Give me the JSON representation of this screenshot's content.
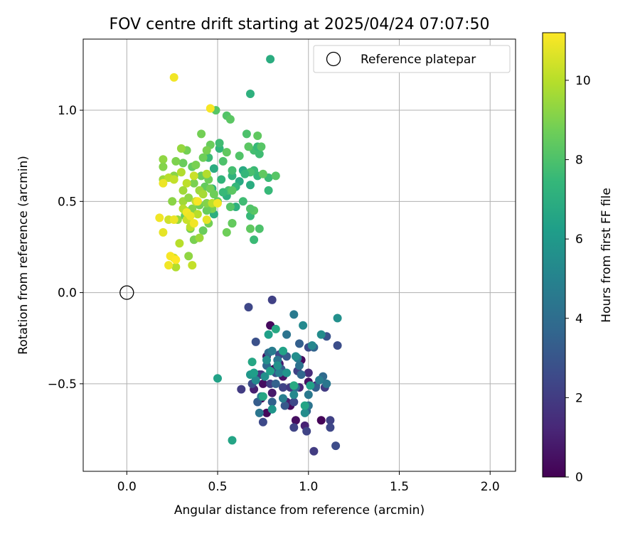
{
  "chart_data": {
    "type": "scatter",
    "title": "FOV centre drift starting at 2025/04/24 07:07:50",
    "xlabel": "Angular distance from reference (arcmin)",
    "ylabel": "Rotation from reference (arcmin)",
    "xlim": [
      -0.24,
      2.14
    ],
    "ylim": [
      -0.98,
      1.39
    ],
    "xticks": [
      0.0,
      0.5,
      1.0,
      1.5,
      2.0
    ],
    "xtick_labels": [
      "0.0",
      "0.5",
      "1.0",
      "1.5",
      "2.0"
    ],
    "yticks": [
      -0.5,
      0.0,
      0.5,
      1.0
    ],
    "ytick_labels": [
      "−0.5",
      "0.0",
      "0.5",
      "1.0"
    ],
    "grid": true,
    "legend": {
      "position": "top-right",
      "entries": [
        "Reference platepar"
      ]
    },
    "reference_point": {
      "x": 0.0,
      "y": 0.0,
      "label": "Reference platepar"
    },
    "colorbar": {
      "label": "Hours from first FF file",
      "colormap": "viridis",
      "range": [
        0,
        11.2
      ],
      "ticks": [
        0,
        2,
        4,
        6,
        8,
        10
      ],
      "tick_labels": [
        "0",
        "2",
        "4",
        "6",
        "8",
        "10"
      ]
    },
    "points": [
      [
        0.79,
        -0.18,
        0.3
      ],
      [
        0.77,
        -0.35,
        0.5
      ],
      [
        0.75,
        -0.5,
        0.4
      ],
      [
        0.81,
        -0.42,
        0.2
      ],
      [
        0.86,
        -0.46,
        0.6
      ],
      [
        0.74,
        -0.58,
        0.1
      ],
      [
        0.96,
        -0.37,
        0.3
      ],
      [
        1.0,
        -0.49,
        0.5
      ],
      [
        0.8,
        -0.55,
        0.8
      ],
      [
        0.77,
        -0.66,
        0.2
      ],
      [
        0.93,
        -0.7,
        0.4
      ],
      [
        1.07,
        -0.7,
        0.1
      ],
      [
        0.9,
        -0.62,
        0.3
      ],
      [
        0.84,
        -0.39,
        0.9
      ],
      [
        0.73,
        -0.45,
        0.7
      ],
      [
        0.7,
        -0.53,
        1.0
      ],
      [
        0.95,
        -0.52,
        1.2
      ],
      [
        0.88,
        -0.6,
        1.0
      ],
      [
        1.0,
        -0.44,
        1.4
      ],
      [
        0.98,
        -0.73,
        1.1
      ],
      [
        0.8,
        -0.04,
        2.2
      ],
      [
        0.67,
        -0.08,
        2.4
      ],
      [
        0.63,
        -0.53,
        2.0
      ],
      [
        0.75,
        -0.71,
        2.5
      ],
      [
        0.92,
        -0.74,
        2.3
      ],
      [
        1.03,
        -0.87,
        2.0
      ],
      [
        1.15,
        -0.84,
        2.6
      ],
      [
        1.12,
        -0.7,
        2.2
      ],
      [
        1.12,
        -0.74,
        2.4
      ],
      [
        1.09,
        -0.52,
        2.0
      ],
      [
        1.16,
        -0.29,
        2.7
      ],
      [
        1.1,
        -0.24,
        2.9
      ],
      [
        1.0,
        -0.3,
        2.6
      ],
      [
        0.94,
        -0.43,
        2.2
      ],
      [
        0.86,
        -0.52,
        2.3
      ],
      [
        0.82,
        -0.44,
        2.8
      ],
      [
        0.92,
        -0.6,
        2.5
      ],
      [
        0.79,
        -0.5,
        2.1
      ],
      [
        0.84,
        -0.34,
        2.4
      ],
      [
        0.69,
        -0.5,
        2.6
      ],
      [
        0.71,
        -0.27,
        2.8
      ],
      [
        0.99,
        -0.76,
        2.3
      ],
      [
        0.74,
        -0.45,
        1.8
      ],
      [
        0.9,
        -0.52,
        1.9
      ],
      [
        1.04,
        -0.51,
        1.7
      ],
      [
        0.95,
        -0.28,
        3.4
      ],
      [
        1.03,
        -0.3,
        3.6
      ],
      [
        0.88,
        -0.35,
        3.2
      ],
      [
        0.82,
        -0.5,
        3.5
      ],
      [
        0.77,
        -0.4,
        3.8
      ],
      [
        0.72,
        -0.6,
        3.3
      ],
      [
        0.96,
        -0.45,
        3.7
      ],
      [
        1.08,
        -0.46,
        3.9
      ],
      [
        0.8,
        -0.6,
        3.5
      ],
      [
        1.04,
        -0.52,
        3.4
      ],
      [
        0.87,
        -0.62,
        3.1
      ],
      [
        0.99,
        -0.65,
        3.6
      ],
      [
        0.93,
        -0.52,
        3.8
      ],
      [
        0.85,
        -0.42,
        3.3
      ],
      [
        0.78,
        -0.33,
        3.9
      ],
      [
        0.88,
        -0.23,
        4.3
      ],
      [
        0.92,
        -0.12,
        4.6
      ],
      [
        0.8,
        -0.32,
        4.7
      ],
      [
        0.95,
        -0.4,
        4.2
      ],
      [
        1.0,
        -0.56,
        4.5
      ],
      [
        1.06,
        -0.48,
        4.8
      ],
      [
        1.1,
        -0.5,
        4.4
      ],
      [
        0.73,
        -0.66,
        4.4
      ],
      [
        0.84,
        -0.44,
        4.9
      ],
      [
        0.94,
        -0.36,
        4.6
      ],
      [
        0.74,
        -0.57,
        4.7
      ],
      [
        1.0,
        -0.62,
        4.3
      ],
      [
        0.86,
        -0.58,
        4.8
      ],
      [
        0.83,
        -0.37,
        4.5
      ],
      [
        0.97,
        -0.18,
        5.3
      ],
      [
        1.16,
        -0.14,
        5.6
      ],
      [
        1.07,
        -0.23,
        5.4
      ],
      [
        1.02,
        -0.29,
        5.2
      ],
      [
        0.93,
        -0.35,
        5.5
      ],
      [
        0.8,
        -0.64,
        5.8
      ],
      [
        0.83,
        -0.4,
        5.7
      ],
      [
        0.71,
        -0.48,
        5.3
      ],
      [
        0.76,
        -0.46,
        5.6
      ],
      [
        0.98,
        -0.66,
        5.4
      ],
      [
        0.92,
        -0.56,
        5.2
      ],
      [
        0.88,
        -0.44,
        5.8
      ],
      [
        0.77,
        -0.37,
        5.5
      ],
      [
        0.68,
        -0.45,
        5.9
      ],
      [
        0.5,
        -0.47,
        6.4
      ],
      [
        0.58,
        -0.81,
        6.5
      ],
      [
        0.78,
        -0.23,
        6.3
      ],
      [
        0.82,
        -0.2,
        6.7
      ],
      [
        0.86,
        -0.32,
        6.4
      ],
      [
        0.75,
        -0.57,
        6.6
      ],
      [
        0.7,
        -0.44,
        6.2
      ],
      [
        0.92,
        -0.51,
        6.8
      ],
      [
        1.01,
        -0.51,
        6.4
      ],
      [
        0.69,
        -0.38,
        6.6
      ],
      [
        0.98,
        -0.62,
        6.5
      ],
      [
        0.79,
        -0.43,
        6.3
      ],
      [
        0.79,
        1.28,
        6.9
      ],
      [
        0.68,
        1.09,
        7.1
      ],
      [
        0.64,
        0.67,
        6.8
      ],
      [
        0.68,
        0.59,
        6.9
      ],
      [
        0.55,
        0.53,
        7.0
      ],
      [
        0.58,
        0.64,
        7.2
      ],
      [
        0.6,
        0.47,
        7.1
      ],
      [
        0.62,
        0.61,
        6.8
      ],
      [
        0.52,
        0.62,
        7.3
      ],
      [
        0.48,
        0.43,
        7.0
      ],
      [
        0.47,
        0.57,
        7.2
      ],
      [
        0.51,
        0.79,
        7.3
      ],
      [
        0.48,
        0.68,
        6.9
      ],
      [
        0.78,
        0.63,
        7.6
      ],
      [
        0.78,
        0.56,
        7.5
      ],
      [
        0.72,
        0.64,
        7.4
      ],
      [
        0.7,
        0.78,
        7.8
      ],
      [
        0.73,
        0.76,
        7.7
      ],
      [
        0.72,
        0.8,
        7.5
      ],
      [
        0.7,
        0.67,
        7.6
      ],
      [
        0.68,
        0.66,
        7.9
      ],
      [
        0.65,
        0.65,
        7.4
      ],
      [
        0.64,
        0.5,
        7.7
      ],
      [
        0.68,
        0.42,
        7.5
      ],
      [
        0.7,
        0.29,
        7.6
      ],
      [
        0.58,
        0.67,
        7.8
      ],
      [
        0.6,
        0.58,
        7.4
      ],
      [
        0.56,
        0.56,
        7.9
      ],
      [
        0.53,
        0.55,
        7.5
      ],
      [
        0.51,
        0.82,
        7.7
      ],
      [
        0.45,
        0.74,
        7.6
      ],
      [
        0.55,
        0.97,
        8.1
      ],
      [
        0.57,
        0.95,
        8.3
      ],
      [
        0.49,
        1.0,
        8.2
      ],
      [
        0.72,
        0.86,
        8.4
      ],
      [
        0.66,
        0.87,
        8.0
      ],
      [
        0.74,
        0.8,
        8.2
      ],
      [
        0.67,
        0.8,
        8.3
      ],
      [
        0.62,
        0.75,
        8.1
      ],
      [
        0.55,
        0.77,
        8.4
      ],
      [
        0.53,
        0.72,
        8.0
      ],
      [
        0.58,
        0.56,
        8.3
      ],
      [
        0.57,
        0.47,
        8.2
      ],
      [
        0.58,
        0.38,
        8.1
      ],
      [
        0.68,
        0.35,
        8.4
      ],
      [
        0.73,
        0.35,
        8.0
      ],
      [
        0.7,
        0.45,
        8.3
      ],
      [
        0.82,
        0.64,
        8.2
      ],
      [
        0.75,
        0.65,
        8.4
      ],
      [
        0.68,
        0.46,
        8.1
      ],
      [
        0.41,
        0.87,
        8.8
      ],
      [
        0.46,
        0.81,
        8.6
      ],
      [
        0.44,
        0.78,
        8.9
      ],
      [
        0.42,
        0.74,
        8.7
      ],
      [
        0.36,
        0.69,
        8.5
      ],
      [
        0.38,
        0.7,
        8.9
      ],
      [
        0.31,
        0.71,
        8.6
      ],
      [
        0.33,
        0.78,
        8.8
      ],
      [
        0.27,
        0.72,
        9.0
      ],
      [
        0.45,
        0.62,
        8.7
      ],
      [
        0.43,
        0.58,
        8.5
      ],
      [
        0.37,
        0.6,
        8.9
      ],
      [
        0.41,
        0.64,
        8.6
      ],
      [
        0.46,
        0.57,
        8.8
      ],
      [
        0.48,
        0.54,
        8.7
      ],
      [
        0.5,
        0.5,
        8.5
      ],
      [
        0.47,
        0.46,
        8.9
      ],
      [
        0.44,
        0.45,
        8.6
      ],
      [
        0.4,
        0.48,
        8.8
      ],
      [
        0.36,
        0.44,
        8.7
      ],
      [
        0.32,
        0.42,
        8.5
      ],
      [
        0.35,
        0.35,
        8.9
      ],
      [
        0.42,
        0.34,
        8.6
      ],
      [
        0.45,
        0.38,
        8.8
      ],
      [
        0.55,
        0.33,
        8.7
      ],
      [
        0.58,
        0.38,
        8.5
      ],
      [
        0.37,
        0.29,
        8.9
      ],
      [
        0.2,
        0.73,
        9.3
      ],
      [
        0.2,
        0.69,
        9.1
      ],
      [
        0.2,
        0.62,
        9.5
      ],
      [
        0.25,
        0.5,
        9.2
      ],
      [
        0.28,
        0.4,
        9.4
      ],
      [
        0.31,
        0.5,
        9.6
      ],
      [
        0.34,
        0.52,
        9.3
      ],
      [
        0.36,
        0.46,
        9.1
      ],
      [
        0.4,
        0.56,
        9.5
      ],
      [
        0.42,
        0.54,
        9.7
      ],
      [
        0.3,
        0.79,
        9.4
      ],
      [
        0.26,
        0.64,
        9.2
      ],
      [
        0.31,
        0.56,
        9.6
      ],
      [
        0.34,
        0.2,
        9.3
      ],
      [
        0.4,
        0.3,
        9.5
      ],
      [
        0.44,
        0.49,
        9.1
      ],
      [
        0.32,
        0.45,
        9.4
      ],
      [
        0.23,
        0.63,
        10.0
      ],
      [
        0.26,
        0.62,
        10.2
      ],
      [
        0.3,
        0.66,
        9.9
      ],
      [
        0.33,
        0.6,
        10.1
      ],
      [
        0.37,
        0.64,
        10.3
      ],
      [
        0.39,
        0.43,
        10.0
      ],
      [
        0.38,
        0.5,
        10.2
      ],
      [
        0.44,
        0.65,
        9.9
      ],
      [
        0.47,
        0.49,
        10.1
      ],
      [
        0.33,
        0.4,
        10.3
      ],
      [
        0.29,
        0.27,
        10.0
      ],
      [
        0.36,
        0.15,
        10.2
      ],
      [
        0.27,
        0.14,
        9.9
      ],
      [
        0.26,
        0.19,
        10.3
      ],
      [
        0.35,
        0.36,
        10.1
      ],
      [
        0.31,
        0.46,
        10.0
      ],
      [
        0.23,
        0.4,
        10.4
      ],
      [
        0.26,
        1.18,
        11.0
      ],
      [
        0.46,
        1.01,
        11.1
      ],
      [
        0.2,
        0.6,
        10.9
      ],
      [
        0.18,
        0.41,
        11.0
      ],
      [
        0.2,
        0.33,
        10.8
      ],
      [
        0.24,
        0.2,
        11.1
      ],
      [
        0.23,
        0.15,
        11.0
      ],
      [
        0.26,
        0.4,
        10.9
      ],
      [
        0.33,
        0.44,
        11.0
      ],
      [
        0.39,
        0.5,
        11.1
      ],
      [
        0.5,
        0.49,
        11.0
      ],
      [
        0.44,
        0.4,
        10.8
      ],
      [
        0.35,
        0.42,
        10.9
      ],
      [
        0.27,
        0.18,
        11.2
      ],
      [
        0.37,
        0.38,
        11.0
      ]
    ]
  }
}
